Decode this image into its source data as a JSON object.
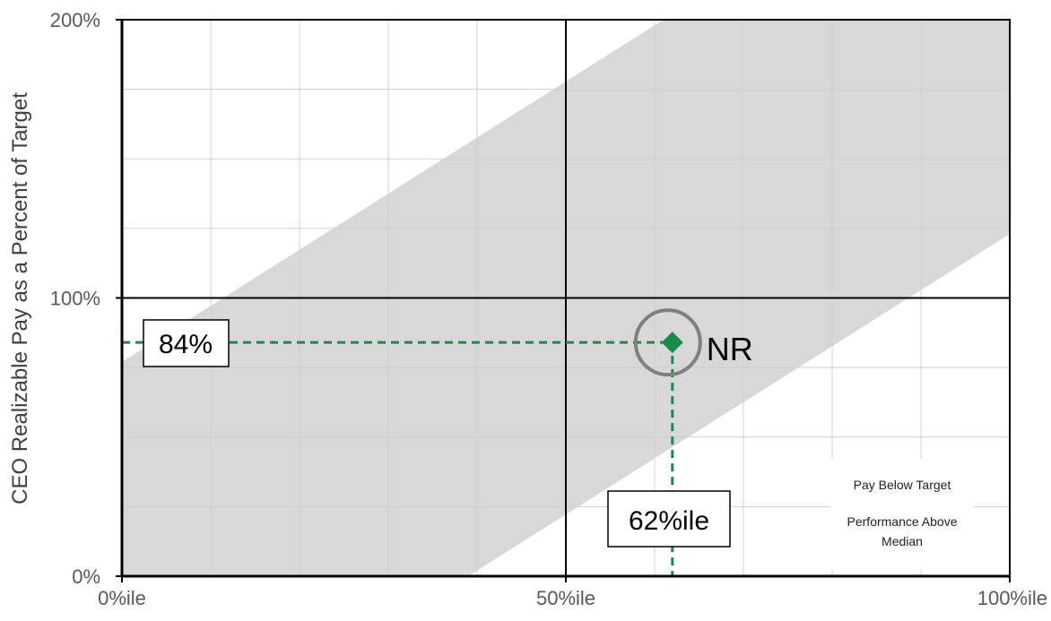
{
  "chart_data": {
    "type": "scatter",
    "title": "",
    "xlabel": "",
    "ylabel": "CEO Realizable Pay as a Percent of Target",
    "xlim": [
      0,
      100
    ],
    "ylim": [
      0,
      200
    ],
    "x_ticks": [
      {
        "value": 0,
        "label": "0%ile"
      },
      {
        "value": 50,
        "label": "50%ile"
      },
      {
        "value": 100,
        "label": "100%ile"
      }
    ],
    "y_ticks": [
      {
        "value": 0,
        "label": "0%"
      },
      {
        "value": 100,
        "label": "100%"
      },
      {
        "value": 200,
        "label": "200%"
      }
    ],
    "minor_grid_x_step": 10,
    "minor_grid_y_step": 25,
    "grid": true,
    "alignment_band": {
      "lower": {
        "x": [
          39,
          100
        ],
        "y": [
          0,
          123
        ]
      },
      "upper": {
        "x": [
          0,
          61
        ],
        "y": [
          77,
          200
        ]
      },
      "color": "#d9d8d9"
    },
    "points": [
      {
        "label": "NR",
        "x": 62,
        "y": 84,
        "color": "#1a8a4a",
        "marker": "diamond",
        "highlighted": true
      }
    ],
    "callouts": {
      "y_value": "84%",
      "x_value": "62%ile"
    },
    "quadrant_note": {
      "line1": "Pay Below Target",
      "line2": "Performance Above",
      "line3": "Median"
    },
    "colors": {
      "band": "#d9d8d9",
      "point": "#1a8a4a",
      "guide": "#1a8a4a",
      "circle": "#7f7f7f",
      "axis": "#000000",
      "grid": "#d0d0d0"
    }
  }
}
